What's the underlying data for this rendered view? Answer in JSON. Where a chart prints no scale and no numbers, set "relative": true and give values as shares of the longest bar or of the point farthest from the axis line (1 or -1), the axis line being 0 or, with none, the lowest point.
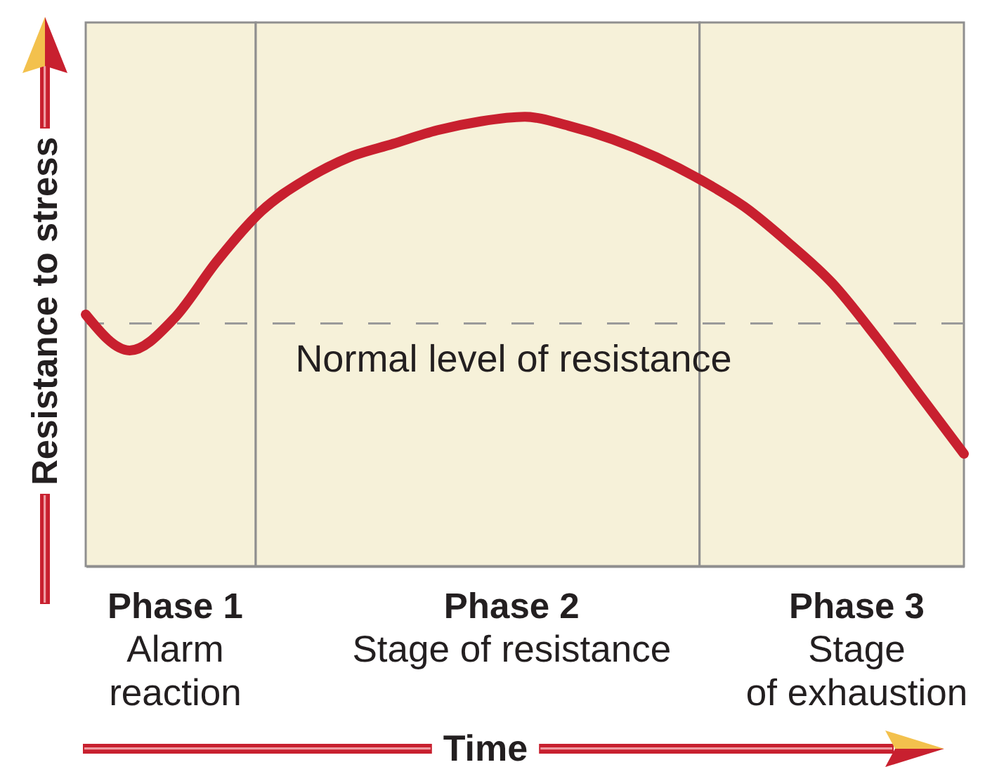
{
  "chart_data": {
    "type": "line",
    "xlabel": "Time",
    "ylabel": "Resistance to stress",
    "relative": true,
    "categories": [
      null,
      null,
      null,
      null,
      null,
      null,
      null,
      null,
      null,
      null,
      null,
      null,
      null,
      null,
      null,
      null,
      null,
      null,
      null,
      null,
      null
    ],
    "series": [
      {
        "color": "#c8202f",
        "values": [
          0.56,
          0.48,
          0.55,
          0.68,
          0.79,
          0.86,
          0.91,
          0.94,
          0.97,
          0.99,
          1.0,
          0.98,
          0.95,
          0.91,
          0.86,
          0.8,
          0.72,
          0.63,
          0.51,
          0.38,
          0.25
        ]
      }
    ],
    "ref_lines": [
      {
        "axis": "y",
        "value": 0.54,
        "label": "Normal level of resistance",
        "color": "#9a9a9a",
        "line_style": "dashed"
      }
    ],
    "annotations": [
      "Phase 1\nAlarm\nreaction",
      "Phase 2\nStage of resistance",
      "Phase 3\nStage\nof exhaustion"
    ],
    "marker": "none",
    "line_style": "solid"
  }
}
